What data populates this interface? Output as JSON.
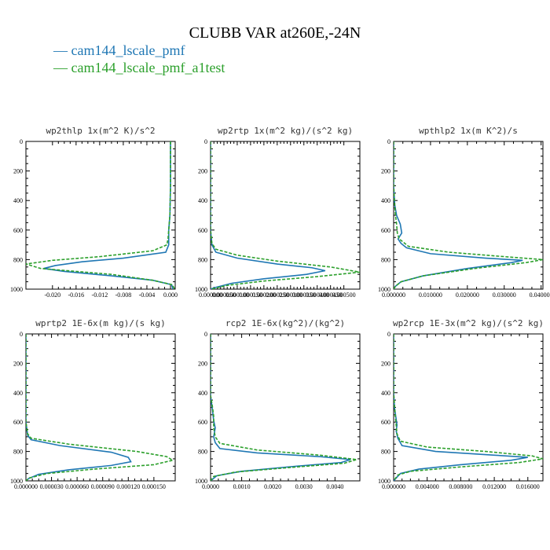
{
  "figure": {
    "title": "CLUBB VAR at260E,-24N",
    "legend": [
      {
        "label": "— cam144_lscale_pmf",
        "color": "#1f77b4",
        "dash": "solid"
      },
      {
        "label": "— cam144_lscale_pmf_a1test",
        "color": "#2ca02c",
        "dash": "dashed"
      }
    ]
  },
  "chart_data": [
    {
      "type": "line",
      "title": "wp2thlp  1x(m^2 K)/s^2",
      "xlim": [
        -0.0245,
        0.0008
      ],
      "ylim": [
        1000,
        0
      ],
      "xticks": [
        -0.02,
        -0.016,
        -0.012,
        -0.008,
        -0.004,
        0.0
      ],
      "xtick_labels": [
        "-0.020",
        "-0.016",
        "-0.012",
        "-0.008",
        "-0.004",
        "0.000"
      ],
      "yticks": [
        0,
        200,
        400,
        600,
        800,
        1000
      ],
      "ytick_labels": [
        "0",
        "200",
        "400",
        "600",
        "800",
        "1000"
      ],
      "series": [
        {
          "color": "#1f77b4",
          "dash": "solid",
          "points": [
            [
              0,
              0
            ],
            [
              0,
              300
            ],
            [
              -0.0001,
              500
            ],
            [
              -0.0003,
              600
            ],
            [
              -0.0003,
              700
            ],
            [
              -0.0008,
              750
            ],
            [
              -0.008,
              790
            ],
            [
              -0.015,
              815
            ],
            [
              -0.0195,
              840
            ],
            [
              -0.0215,
              860
            ],
            [
              -0.018,
              880
            ],
            [
              -0.01,
              910
            ],
            [
              -0.003,
              940
            ],
            [
              0.0002,
              970
            ],
            [
              0.0004,
              1000
            ]
          ]
        },
        {
          "color": "#2ca02c",
          "dash": "dashed",
          "points": [
            [
              0,
              0
            ],
            [
              0,
              300
            ],
            [
              -0.0001,
              500
            ],
            [
              -0.0004,
              650
            ],
            [
              -0.0006,
              700
            ],
            [
              -0.003,
              740
            ],
            [
              -0.012,
              780
            ],
            [
              -0.02,
              805
            ],
            [
              -0.0245,
              830
            ],
            [
              -0.022,
              860
            ],
            [
              -0.01,
              900
            ],
            [
              -0.003,
              940
            ],
            [
              0.0003,
              970
            ],
            [
              0.0007,
              1000
            ]
          ]
        }
      ]
    },
    {
      "type": "line",
      "title": "wp2rtp  1x(m^2 kg)/(s^2 kg)",
      "xlim": [
        0,
        0.00056
      ],
      "ylim": [
        1000,
        0
      ],
      "xticks": [
        0,
        5e-05,
        0.0001,
        0.00015,
        0.0002,
        0.00025,
        0.0003,
        0.00035,
        0.0004,
        0.00045,
        0.0005
      ],
      "xtick_labels": [
        "0.000000",
        "0.000050",
        "0.000100",
        "0.000150",
        "0.000200",
        "0.000250",
        "0.000300",
        "0.000350",
        "0.000400",
        "0.000450",
        "0.000500"
      ],
      "yticks": [
        0,
        200,
        400,
        600,
        800,
        1000
      ],
      "ytick_labels": [
        "0",
        "200",
        "400",
        "600",
        "800",
        "1000"
      ],
      "series": [
        {
          "color": "#1f77b4",
          "dash": "solid",
          "points": [
            [
              0,
              0
            ],
            [
              0,
              600
            ],
            [
              5e-06,
              700
            ],
            [
              2e-05,
              750
            ],
            [
              0.0001,
              790
            ],
            [
              0.00025,
              830
            ],
            [
              0.00038,
              855
            ],
            [
              0.00043,
              875
            ],
            [
              0.00036,
              900
            ],
            [
              0.0002,
              930
            ],
            [
              8e-05,
              960
            ],
            [
              1.5e-05,
              990
            ],
            [
              0,
              1000
            ]
          ]
        },
        {
          "color": "#2ca02c",
          "dash": "dashed",
          "points": [
            [
              0,
              0
            ],
            [
              0,
              600
            ],
            [
              5e-06,
              690
            ],
            [
              2e-05,
              730
            ],
            [
              0.0001,
              770
            ],
            [
              0.00025,
              810
            ],
            [
              0.00045,
              850
            ],
            [
              0.00056,
              885
            ],
            [
              0.0004,
              915
            ],
            [
              0.0002,
              945
            ],
            [
              6e-05,
              975
            ],
            [
              1.5e-05,
              995
            ],
            [
              0,
              1000
            ]
          ]
        }
      ]
    },
    {
      "type": "line",
      "title": "wpthlp2  1x(m K^2)/s",
      "xlim": [
        0,
        0.0405
      ],
      "ylim": [
        1000,
        0
      ],
      "xticks": [
        0,
        0.01,
        0.02,
        0.03,
        0.04
      ],
      "xtick_labels": [
        "0.000000",
        "0.010000",
        "0.020000",
        "0.030000",
        "0.040000"
      ],
      "yticks": [
        0,
        200,
        400,
        600,
        800,
        1000
      ],
      "ytick_labels": [
        "0",
        "200",
        "400",
        "600",
        "800",
        "1000"
      ],
      "series": [
        {
          "color": "#1f77b4",
          "dash": "solid",
          "points": [
            [
              0,
              0
            ],
            [
              0,
              300
            ],
            [
              0.0003,
              430
            ],
            [
              0.0008,
              500
            ],
            [
              0.0018,
              560
            ],
            [
              0.0022,
              620
            ],
            [
              0.0012,
              660
            ],
            [
              0.002,
              690
            ],
            [
              0.0035,
              720
            ],
            [
              0.01,
              760
            ],
            [
              0.025,
              790
            ],
            [
              0.035,
              805
            ],
            [
              0.032,
              820
            ],
            [
              0.02,
              860
            ],
            [
              0.008,
              910
            ],
            [
              0.002,
              950
            ],
            [
              0.0005,
              980
            ],
            [
              0,
              1000
            ]
          ]
        },
        {
          "color": "#2ca02c",
          "dash": "dashed",
          "points": [
            [
              0,
              0
            ],
            [
              0,
              300
            ],
            [
              0.0003,
              430
            ],
            [
              0.0005,
              500
            ],
            [
              0.0008,
              560
            ],
            [
              0.001,
              620
            ],
            [
              0.0015,
              660
            ],
            [
              0.004,
              710
            ],
            [
              0.015,
              750
            ],
            [
              0.03,
              780
            ],
            [
              0.0405,
              800
            ],
            [
              0.036,
              820
            ],
            [
              0.022,
              860
            ],
            [
              0.008,
              910
            ],
            [
              0.002,
              950
            ],
            [
              0.0005,
              980
            ],
            [
              0,
              1000
            ]
          ]
        }
      ]
    },
    {
      "type": "line",
      "title": "wprtp2  1E-6x(m kg)/(s kg)",
      "xlim": [
        0,
        0.000175
      ],
      "ylim": [
        1000,
        0
      ],
      "xticks": [
        0,
        3e-05,
        6e-05,
        9e-05,
        0.00012,
        0.00015
      ],
      "xtick_labels": [
        "0.000000",
        "0.000030",
        "0.000060",
        "0.000090",
        "0.000120",
        "0.000150"
      ],
      "yticks": [
        0,
        200,
        400,
        600,
        800,
        1000
      ],
      "ytick_labels": [
        "0",
        "200",
        "400",
        "600",
        "800",
        "1000"
      ],
      "series": [
        {
          "color": "#1f77b4",
          "dash": "solid",
          "points": [
            [
              0,
              0
            ],
            [
              0,
              600
            ],
            [
              2e-06,
              690
            ],
            [
              6e-06,
              720
            ],
            [
              4e-05,
              760
            ],
            [
              0.0001,
              805
            ],
            [
              0.00012,
              840
            ],
            [
              0.000123,
              870
            ],
            [
              0.0001,
              895
            ],
            [
              5e-05,
              925
            ],
            [
              1.5e-05,
              955
            ],
            [
              3e-06,
              985
            ],
            [
              0,
              1000
            ]
          ]
        },
        {
          "color": "#2ca02c",
          "dash": "dashed",
          "points": [
            [
              0,
              0
            ],
            [
              0,
              600
            ],
            [
              2e-06,
              680
            ],
            [
              6e-06,
              710
            ],
            [
              5e-05,
              750
            ],
            [
              0.00013,
              800
            ],
            [
              0.000165,
              835
            ],
            [
              0.000172,
              860
            ],
            [
              0.00015,
              890
            ],
            [
              8e-05,
              920
            ],
            [
              2.5e-05,
              950
            ],
            [
              4e-06,
              980
            ],
            [
              0,
              1000
            ]
          ]
        }
      ]
    },
    {
      "type": "line",
      "title": "rcp2  1E-6x(kg^2)/(kg^2)",
      "xlim": [
        0,
        0.0048
      ],
      "ylim": [
        1000,
        0
      ],
      "xticks": [
        0,
        0.001,
        0.002,
        0.003,
        0.004
      ],
      "xtick_labels": [
        "0.0000",
        "0.0010",
        "0.0020",
        "0.0030",
        "0.0040"
      ],
      "yticks": [
        0,
        200,
        400,
        600,
        800,
        1000
      ],
      "ytick_labels": [
        "0",
        "200",
        "400",
        "600",
        "800",
        "1000"
      ],
      "series": [
        {
          "color": "#1f77b4",
          "dash": "solid",
          "points": [
            [
              0,
              0
            ],
            [
              0,
              420
            ],
            [
              5e-05,
              500
            ],
            [
              0.0001,
              590
            ],
            [
              0.00015,
              640
            ],
            [
              0.0001,
              700
            ],
            [
              0.00015,
              740
            ],
            [
              0.0003,
              780
            ],
            [
              0.0015,
              810
            ],
            [
              0.0035,
              835
            ],
            [
              0.0045,
              855
            ],
            [
              0.0042,
              875
            ],
            [
              0.0025,
              905
            ],
            [
              0.001,
              935
            ],
            [
              0.0002,
              965
            ],
            [
              0,
              1000
            ]
          ]
        },
        {
          "color": "#2ca02c",
          "dash": "dashed",
          "points": [
            [
              0,
              0
            ],
            [
              0,
              420
            ],
            [
              5e-05,
              480
            ],
            [
              0.0001,
              560
            ],
            [
              0.0001,
              640
            ],
            [
              0.00015,
              700
            ],
            [
              0.0003,
              745
            ],
            [
              0.0015,
              790
            ],
            [
              0.0035,
              825
            ],
            [
              0.0047,
              855
            ],
            [
              0.0043,
              880
            ],
            [
              0.0025,
              910
            ],
            [
              0.0008,
              940
            ],
            [
              0.0001,
              970
            ],
            [
              0,
              1000
            ]
          ]
        }
      ]
    },
    {
      "type": "line",
      "title": "wp2rcp  1E-3x(m^2 kg)/(s^2 kg)",
      "xlim": [
        0,
        0.0178
      ],
      "ylim": [
        1000,
        0
      ],
      "xticks": [
        0,
        0.004,
        0.008,
        0.012,
        0.016
      ],
      "xtick_labels": [
        "0.000000",
        "0.004000",
        "0.008000",
        "0.012000",
        "0.016000"
      ],
      "yticks": [
        0,
        200,
        400,
        600,
        800,
        1000
      ],
      "ytick_labels": [
        "0",
        "200",
        "400",
        "600",
        "800",
        "1000"
      ],
      "series": [
        {
          "color": "#1f77b4",
          "dash": "solid",
          "points": [
            [
              0,
              0
            ],
            [
              0,
              400
            ],
            [
              0.0001,
              500
            ],
            [
              0.0003,
              580
            ],
            [
              0.0004,
              620
            ],
            [
              0.0003,
              660
            ],
            [
              0.0005,
              710
            ],
            [
              0.001,
              760
            ],
            [
              0.005,
              800
            ],
            [
              0.012,
              825
            ],
            [
              0.016,
              840
            ],
            [
              0.014,
              860
            ],
            [
              0.008,
              890
            ],
            [
              0.003,
              920
            ],
            [
              0.0008,
              950
            ],
            [
              0,
              1000
            ]
          ]
        },
        {
          "color": "#2ca02c",
          "dash": "dashed",
          "points": [
            [
              0,
              0
            ],
            [
              0,
              400
            ],
            [
              0.0001,
              480
            ],
            [
              0.0002,
              560
            ],
            [
              0.0003,
              620
            ],
            [
              0.0004,
              680
            ],
            [
              0.0008,
              730
            ],
            [
              0.004,
              770
            ],
            [
              0.011,
              800
            ],
            [
              0.0165,
              830
            ],
            [
              0.0178,
              850
            ],
            [
              0.015,
              875
            ],
            [
              0.008,
              905
            ],
            [
              0.002,
              935
            ],
            [
              0.0005,
              960
            ],
            [
              0,
              1000
            ]
          ]
        }
      ]
    }
  ]
}
